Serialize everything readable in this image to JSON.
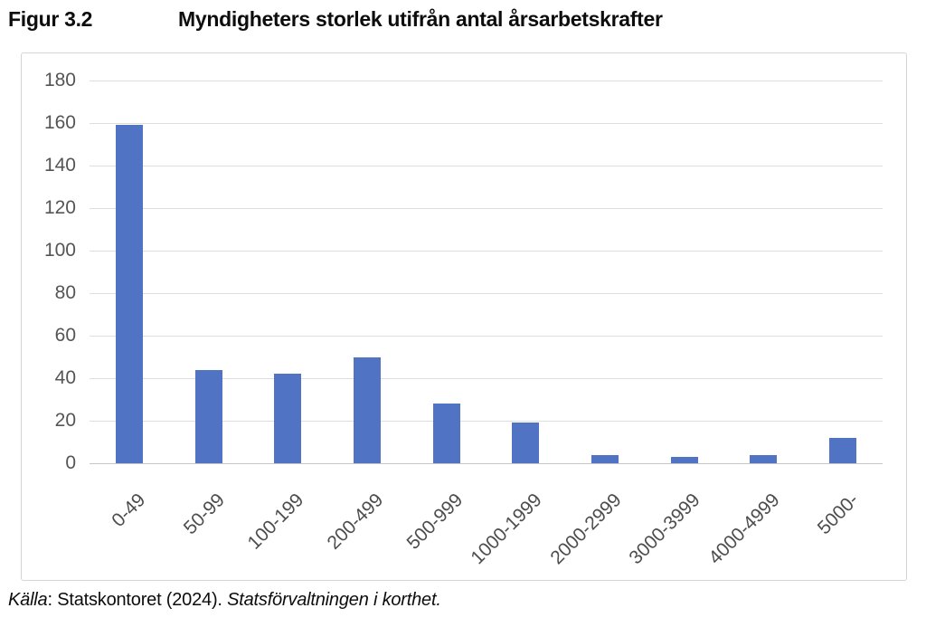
{
  "header": {
    "figure_label": "Figur 3.2",
    "title": "Myndigheters storlek utifrån antal årsarbetskrafter"
  },
  "chart_data": {
    "type": "bar",
    "title": "Myndigheters storlek utifrån antal årsarbetskrafter",
    "categories": [
      "0-49",
      "50-99",
      "100-199",
      "200-499",
      "500-999",
      "1000-1999",
      "2000-2999",
      "3000-3999",
      "4000-4999",
      "5000-"
    ],
    "values": [
      159,
      44,
      42,
      50,
      28,
      19,
      4,
      3,
      4,
      12
    ],
    "xlabel": "",
    "ylabel": "",
    "ylim": [
      0,
      180
    ],
    "ytick_step": 20,
    "yticks": [
      0,
      20,
      40,
      60,
      80,
      100,
      120,
      140,
      160,
      180
    ],
    "grid": true,
    "legend_position": "none",
    "bar_color": "#5173C4",
    "gridline_color": "#DEDEDE",
    "axis_line_color": "#C6C6C6",
    "tick_label_color": "#4D4D4D"
  },
  "source": {
    "label_italic": "Källa",
    "text": ": Statskontoret (2024). ",
    "work_italic": "Statsförvaltningen i korthet."
  }
}
